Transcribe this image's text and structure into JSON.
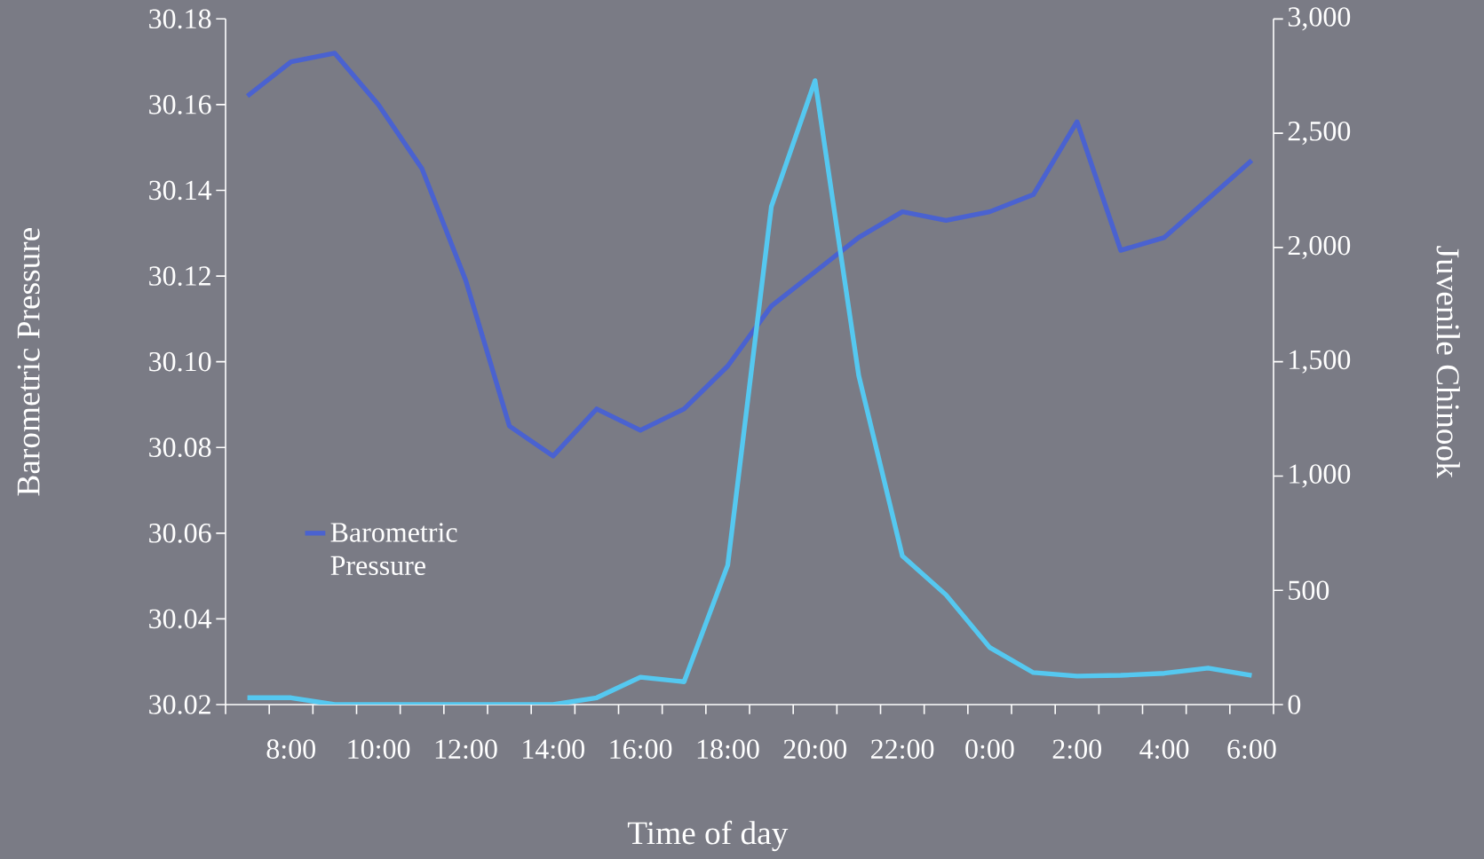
{
  "chart_data": {
    "type": "line",
    "xlabel": "Time of day",
    "ylabel": "Barometric Pressure",
    "y2label": "Juvenile Chinook",
    "categories": [
      null,
      "8:00",
      null,
      "10:00",
      null,
      "12:00",
      null,
      "14:00",
      null,
      "16:00",
      null,
      "18:00",
      null,
      "20:00",
      null,
      "22:00",
      null,
      "0:00",
      null,
      "2:00",
      null,
      "4:00",
      null,
      "6:00"
    ],
    "series": [
      {
        "name": "Barometric Pressure",
        "color": "#4a62d0",
        "values": [
          30.162,
          30.17,
          30.172,
          30.16,
          30.145,
          30.119,
          30.085,
          30.078,
          30.089,
          30.084,
          30.089,
          30.099,
          30.113,
          30.121,
          30.129,
          30.135,
          30.133,
          30.135,
          30.139,
          30.156,
          30.126,
          30.129,
          30.138,
          30.147
        ]
      },
      {
        "axis": "y2",
        "color": "#55c8f0",
        "values": [
          30,
          30,
          0,
          0,
          0,
          0,
          0,
          0,
          30,
          120,
          100,
          610,
          2180,
          2730,
          1440,
          650,
          480,
          250,
          140,
          125,
          128,
          137,
          160,
          128
        ]
      }
    ],
    "ylim": [
      30.02,
      30.18
    ],
    "yticks": [
      {
        "value": 30.02,
        "label": "30.02"
      },
      {
        "value": 30.04,
        "label": "30.04"
      },
      {
        "value": 30.06,
        "label": "30.06"
      },
      {
        "value": 30.08,
        "label": "30.08"
      },
      {
        "value": 30.1,
        "label": "30.10"
      },
      {
        "value": 30.12,
        "label": "30.12"
      },
      {
        "value": 30.14,
        "label": "30.14"
      },
      {
        "value": 30.16,
        "label": "30.16"
      },
      {
        "value": 30.18,
        "label": "30.18"
      }
    ],
    "y2lim": [
      0,
      3000
    ],
    "y2ticks": [
      0,
      500,
      {
        "value": 1000,
        "label": "1,000"
      },
      {
        "value": 1500,
        "label": "1,500"
      },
      {
        "value": 2000,
        "label": "2,000"
      },
      {
        "value": 2500,
        "label": "2,500"
      },
      {
        "value": 3000,
        "label": "3,000"
      }
    ],
    "legend": "left"
  }
}
